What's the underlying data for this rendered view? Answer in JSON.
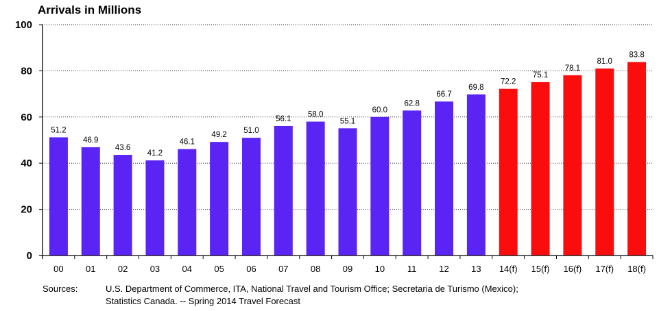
{
  "chart_data": {
    "type": "bar",
    "title": "Arrivals in Millions",
    "categories": [
      "00",
      "01",
      "02",
      "03",
      "04",
      "05",
      "06",
      "07",
      "08",
      "09",
      "10",
      "11",
      "12",
      "13",
      "14(f)",
      "15(f)",
      "16(f)",
      "17(f)",
      "18(f)"
    ],
    "values": [
      51.2,
      46.9,
      43.6,
      41.2,
      46.1,
      49.2,
      51.0,
      56.1,
      58.0,
      55.1,
      60.0,
      62.8,
      66.7,
      69.8,
      72.2,
      75.1,
      78.1,
      81.0,
      83.8
    ],
    "value_labels": [
      "51.2",
      "46.9",
      "43.6",
      "41.2",
      "46.1",
      "49.2",
      "51.0",
      "56.1",
      "58.0",
      "55.1",
      "60.0",
      "62.8",
      "66.7",
      "69.8",
      "72.2",
      "75.1",
      "78.1",
      "81.0",
      "83.8"
    ],
    "forecast": [
      false,
      false,
      false,
      false,
      false,
      false,
      false,
      false,
      false,
      false,
      false,
      false,
      false,
      false,
      true,
      true,
      true,
      true,
      true
    ],
    "ylim": [
      0,
      100
    ],
    "yticks": [
      0,
      20,
      40,
      60,
      80,
      100
    ],
    "ytick_labels": [
      "0",
      "20",
      "40",
      "60",
      "80",
      "100"
    ],
    "grid": "horizontal-dotted",
    "colors": {
      "actual": "#5a24f5",
      "forecast": "#fb0d0d"
    }
  },
  "footer": {
    "label": "Sources:",
    "line1": "U.S. Department of Commerce, ITA, National Travel and Tourism Office; Secretaria de Turismo (Mexico);",
    "line2": "Statistics Canada.  --  Spring 2014 Travel Forecast"
  }
}
